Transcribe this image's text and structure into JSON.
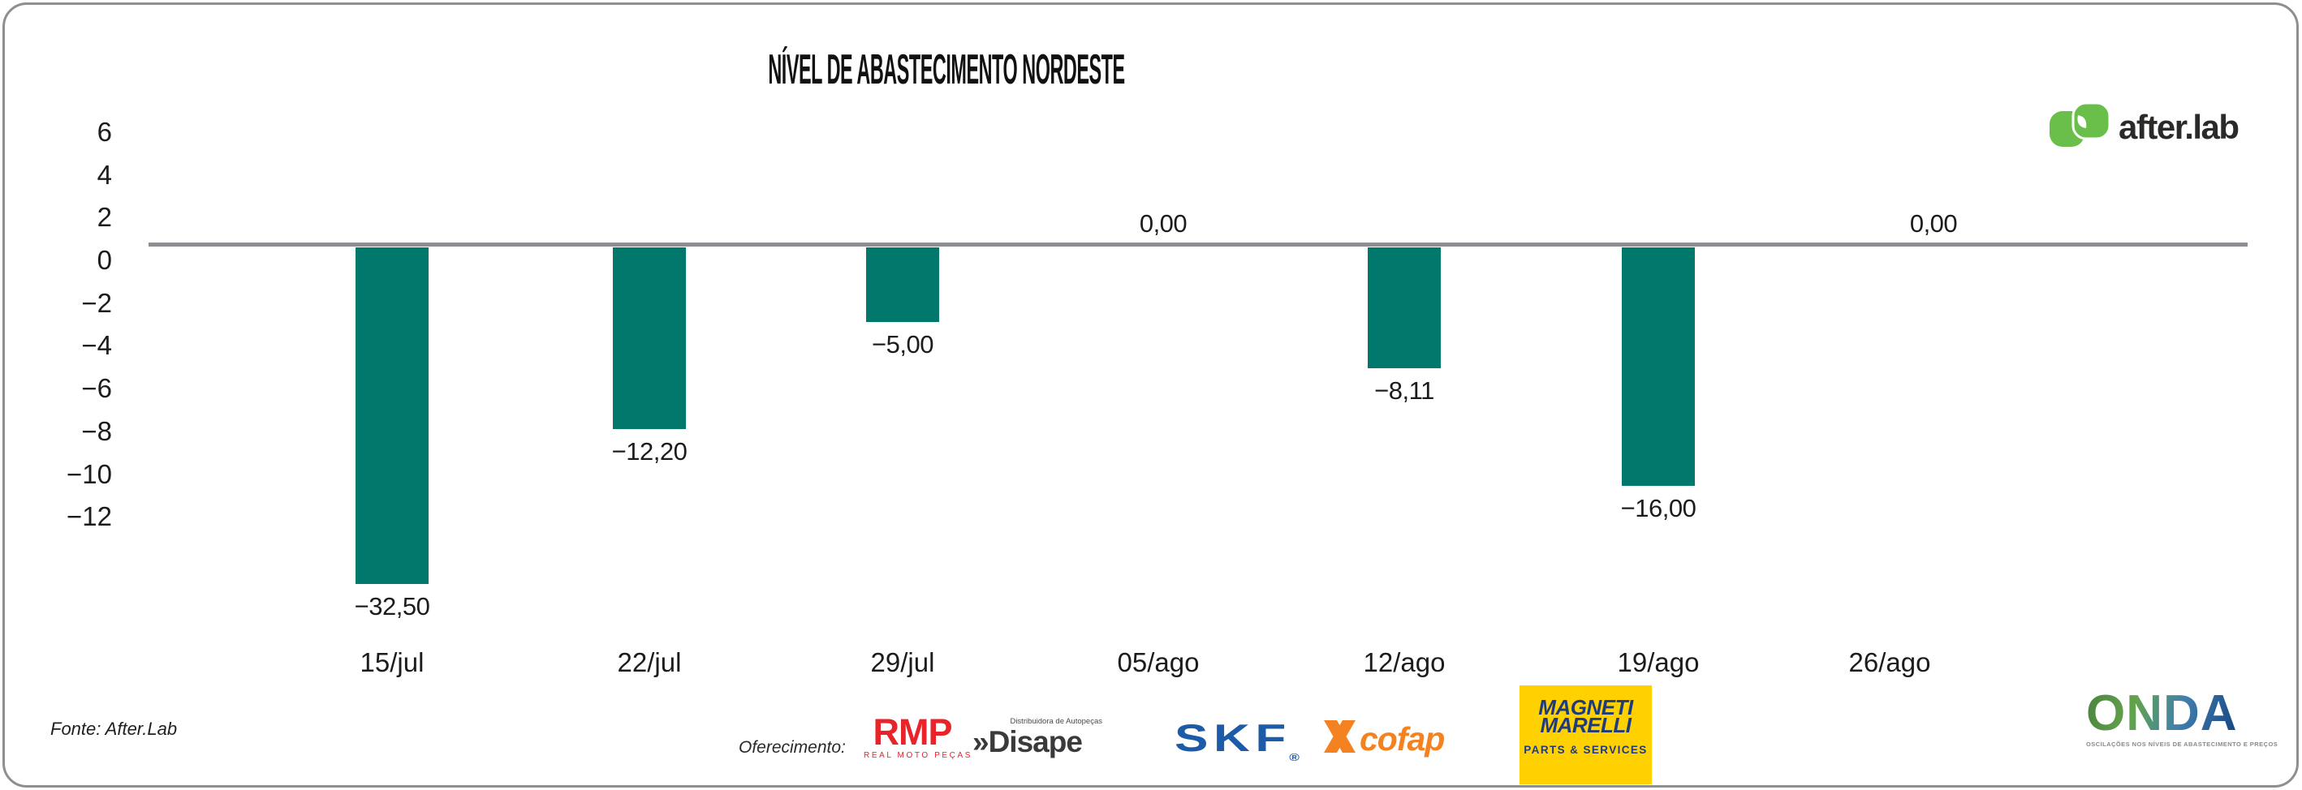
{
  "title": "NÍVEL DE ABASTECIMENTO NORDESTE",
  "chart_data": {
    "type": "bar",
    "title": "NÍVEL DE ABASTECIMENTO NORDESTE",
    "categories": [
      "15/jul",
      "22/jul",
      "29/jul",
      "05/ago",
      "12/ago",
      "19/ago",
      "26/ago"
    ],
    "values": [
      -32.5,
      -12.2,
      -5.0,
      0.0,
      -8.11,
      -16.0,
      0.0
    ],
    "value_labels": [
      "−32,50",
      "−12,20",
      "−5,00",
      "0,00",
      "−8,11",
      "−16,00",
      "0,00"
    ],
    "y_ticks": [
      "6",
      "4",
      "2",
      "0",
      "−2",
      "−4",
      "−6",
      "−8",
      "−10",
      "−12"
    ],
    "ylim": [
      -12,
      6
    ],
    "grid": false,
    "legend": false,
    "bar_color": "#00786B",
    "axis_line_color": "#8E8E92",
    "note": "first bar clipped at plot bottom"
  },
  "logos": {
    "afterlab": {
      "text": "after.lab",
      "icon_green": "#6ABF4B",
      "text_color": "#2B2A29"
    },
    "onda": {
      "name": "ONDA",
      "tagline": "OSCILAÇÕES NOS NÍVEIS DE ABASTECIMENTO E PREÇOS"
    }
  },
  "footer": {
    "fonte": "Fonte: After.Lab",
    "oferecimento_label": "Oferecimento:",
    "sponsors": {
      "rmp": {
        "name": "RMP",
        "sub": "REAL MOTO PEÇAS",
        "color": "#E8232A"
      },
      "disape": {
        "top": "Distribuidora de Autopeças",
        "name": "»Disape",
        "color": "#3A3A3C"
      },
      "skf": {
        "name": "SKF",
        "reg": "®",
        "color": "#1C5BA8"
      },
      "cofap": {
        "name": "cofap",
        "color": "#F58220"
      },
      "magneti_marelli": {
        "line1": "MAGNETI",
        "line2": "MARELLI",
        "sub": "PARTS & SERVICES",
        "bg": "#FFD100",
        "fg": "#1F3B7E"
      }
    }
  }
}
